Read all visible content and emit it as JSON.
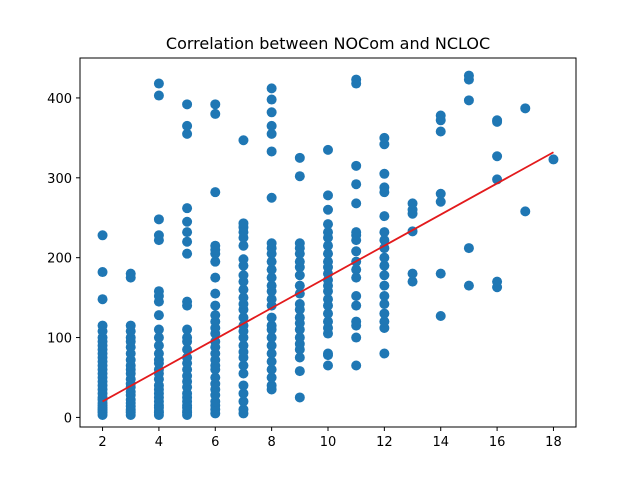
{
  "chart_data": {
    "type": "scatter",
    "title": "Correlation between NOCom and NCLOC",
    "xlabel": "",
    "ylabel": "",
    "xlim": [
      1.2,
      18.8
    ],
    "ylim": [
      -12,
      450
    ],
    "xticks": [
      2,
      4,
      6,
      8,
      10,
      12,
      14,
      16,
      18
    ],
    "yticks": [
      0,
      100,
      200,
      300,
      400
    ],
    "grid": false,
    "point_color": "#1f77b4",
    "line_color": "#e31a1c",
    "series": [
      {
        "kind": "scatter",
        "points": [
          [
            2,
            3
          ],
          [
            2,
            6
          ],
          [
            2,
            8
          ],
          [
            2,
            10
          ],
          [
            2,
            12
          ],
          [
            2,
            15
          ],
          [
            2,
            18
          ],
          [
            2,
            22
          ],
          [
            2,
            25
          ],
          [
            2,
            30
          ],
          [
            2,
            35
          ],
          [
            2,
            40
          ],
          [
            2,
            45
          ],
          [
            2,
            50
          ],
          [
            2,
            55
          ],
          [
            2,
            60
          ],
          [
            2,
            65
          ],
          [
            2,
            70
          ],
          [
            2,
            75
          ],
          [
            2,
            80
          ],
          [
            2,
            85
          ],
          [
            2,
            90
          ],
          [
            2,
            95
          ],
          [
            2,
            100
          ],
          [
            2,
            108
          ],
          [
            2,
            115
          ],
          [
            2,
            148
          ],
          [
            2,
            182
          ],
          [
            2,
            228
          ],
          [
            3,
            3
          ],
          [
            3,
            6
          ],
          [
            3,
            8
          ],
          [
            3,
            10
          ],
          [
            3,
            14
          ],
          [
            3,
            18
          ],
          [
            3,
            22
          ],
          [
            3,
            28
          ],
          [
            3,
            32
          ],
          [
            3,
            38
          ],
          [
            3,
            42
          ],
          [
            3,
            48
          ],
          [
            3,
            55
          ],
          [
            3,
            60
          ],
          [
            3,
            65
          ],
          [
            3,
            72
          ],
          [
            3,
            80
          ],
          [
            3,
            88
          ],
          [
            3,
            95
          ],
          [
            3,
            100
          ],
          [
            3,
            108
          ],
          [
            3,
            115
          ],
          [
            3,
            175
          ],
          [
            3,
            180
          ],
          [
            4,
            3
          ],
          [
            4,
            6
          ],
          [
            4,
            8
          ],
          [
            4,
            12
          ],
          [
            4,
            15
          ],
          [
            4,
            20
          ],
          [
            4,
            25
          ],
          [
            4,
            30
          ],
          [
            4,
            35
          ],
          [
            4,
            40
          ],
          [
            4,
            48
          ],
          [
            4,
            55
          ],
          [
            4,
            60
          ],
          [
            4,
            68
          ],
          [
            4,
            72
          ],
          [
            4,
            80
          ],
          [
            4,
            90
          ],
          [
            4,
            100
          ],
          [
            4,
            110
          ],
          [
            4,
            128
          ],
          [
            4,
            145
          ],
          [
            4,
            152
          ],
          [
            4,
            158
          ],
          [
            4,
            222
          ],
          [
            4,
            228
          ],
          [
            4,
            248
          ],
          [
            4,
            403
          ],
          [
            4,
            418
          ],
          [
            5,
            3
          ],
          [
            5,
            6
          ],
          [
            5,
            8
          ],
          [
            5,
            12
          ],
          [
            5,
            15
          ],
          [
            5,
            20
          ],
          [
            5,
            25
          ],
          [
            5,
            30
          ],
          [
            5,
            38
          ],
          [
            5,
            45
          ],
          [
            5,
            52
          ],
          [
            5,
            60
          ],
          [
            5,
            68
          ],
          [
            5,
            75
          ],
          [
            5,
            85
          ],
          [
            5,
            95
          ],
          [
            5,
            100
          ],
          [
            5,
            110
          ],
          [
            5,
            140
          ],
          [
            5,
            145
          ],
          [
            5,
            205
          ],
          [
            5,
            220
          ],
          [
            5,
            232
          ],
          [
            5,
            245
          ],
          [
            5,
            262
          ],
          [
            5,
            355
          ],
          [
            5,
            365
          ],
          [
            5,
            392
          ],
          [
            6,
            5
          ],
          [
            6,
            10
          ],
          [
            6,
            15
          ],
          [
            6,
            20
          ],
          [
            6,
            28
          ],
          [
            6,
            35
          ],
          [
            6,
            42
          ],
          [
            6,
            50
          ],
          [
            6,
            60
          ],
          [
            6,
            65
          ],
          [
            6,
            72
          ],
          [
            6,
            80
          ],
          [
            6,
            88
          ],
          [
            6,
            95
          ],
          [
            6,
            105
          ],
          [
            6,
            112
          ],
          [
            6,
            120
          ],
          [
            6,
            128
          ],
          [
            6,
            140
          ],
          [
            6,
            155
          ],
          [
            6,
            175
          ],
          [
            6,
            195
          ],
          [
            6,
            205
          ],
          [
            6,
            210
          ],
          [
            6,
            215
          ],
          [
            6,
            282
          ],
          [
            6,
            380
          ],
          [
            6,
            392
          ],
          [
            7,
            5
          ],
          [
            7,
            10
          ],
          [
            7,
            20
          ],
          [
            7,
            30
          ],
          [
            7,
            40
          ],
          [
            7,
            55
          ],
          [
            7,
            65
          ],
          [
            7,
            75
          ],
          [
            7,
            82
          ],
          [
            7,
            90
          ],
          [
            7,
            100
          ],
          [
            7,
            108
          ],
          [
            7,
            115
          ],
          [
            7,
            125
          ],
          [
            7,
            135
          ],
          [
            7,
            142
          ],
          [
            7,
            150
          ],
          [
            7,
            160
          ],
          [
            7,
            170
          ],
          [
            7,
            178
          ],
          [
            7,
            190
          ],
          [
            7,
            198
          ],
          [
            7,
            215
          ],
          [
            7,
            225
          ],
          [
            7,
            232
          ],
          [
            7,
            238
          ],
          [
            7,
            243
          ],
          [
            7,
            347
          ],
          [
            8,
            35
          ],
          [
            8,
            40
          ],
          [
            8,
            50
          ],
          [
            8,
            60
          ],
          [
            8,
            70
          ],
          [
            8,
            80
          ],
          [
            8,
            90
          ],
          [
            8,
            100
          ],
          [
            8,
            110
          ],
          [
            8,
            115
          ],
          [
            8,
            125
          ],
          [
            8,
            140
          ],
          [
            8,
            148
          ],
          [
            8,
            158
          ],
          [
            8,
            165
          ],
          [
            8,
            175
          ],
          [
            8,
            185
          ],
          [
            8,
            195
          ],
          [
            8,
            205
          ],
          [
            8,
            212
          ],
          [
            8,
            218
          ],
          [
            8,
            275
          ],
          [
            8,
            333
          ],
          [
            8,
            355
          ],
          [
            8,
            365
          ],
          [
            8,
            382
          ],
          [
            8,
            398
          ],
          [
            8,
            412
          ],
          [
            9,
            25
          ],
          [
            9,
            58
          ],
          [
            9,
            75
          ],
          [
            9,
            85
          ],
          [
            9,
            92
          ],
          [
            9,
            100
          ],
          [
            9,
            110
          ],
          [
            9,
            118
          ],
          [
            9,
            125
          ],
          [
            9,
            135
          ],
          [
            9,
            142
          ],
          [
            9,
            155
          ],
          [
            9,
            165
          ],
          [
            9,
            178
          ],
          [
            9,
            188
          ],
          [
            9,
            195
          ],
          [
            9,
            205
          ],
          [
            9,
            212
          ],
          [
            9,
            218
          ],
          [
            9,
            302
          ],
          [
            9,
            325
          ],
          [
            10,
            65
          ],
          [
            10,
            78
          ],
          [
            10,
            80
          ],
          [
            10,
            105
          ],
          [
            10,
            112
          ],
          [
            10,
            120
          ],
          [
            10,
            130
          ],
          [
            10,
            140
          ],
          [
            10,
            148
          ],
          [
            10,
            158
          ],
          [
            10,
            165
          ],
          [
            10,
            172
          ],
          [
            10,
            180
          ],
          [
            10,
            188
          ],
          [
            10,
            195
          ],
          [
            10,
            205
          ],
          [
            10,
            215
          ],
          [
            10,
            225
          ],
          [
            10,
            232
          ],
          [
            10,
            242
          ],
          [
            10,
            260
          ],
          [
            10,
            278
          ],
          [
            10,
            335
          ],
          [
            11,
            65
          ],
          [
            11,
            100
          ],
          [
            11,
            115
          ],
          [
            11,
            120
          ],
          [
            11,
            140
          ],
          [
            11,
            152
          ],
          [
            11,
            175
          ],
          [
            11,
            185
          ],
          [
            11,
            195
          ],
          [
            11,
            208
          ],
          [
            11,
            222
          ],
          [
            11,
            228
          ],
          [
            11,
            232
          ],
          [
            11,
            268
          ],
          [
            11,
            292
          ],
          [
            11,
            315
          ],
          [
            11,
            418
          ],
          [
            11,
            423
          ],
          [
            12,
            80
          ],
          [
            12,
            112
          ],
          [
            12,
            120
          ],
          [
            12,
            130
          ],
          [
            12,
            142
          ],
          [
            12,
            152
          ],
          [
            12,
            165
          ],
          [
            12,
            178
          ],
          [
            12,
            190
          ],
          [
            12,
            200
          ],
          [
            12,
            212
          ],
          [
            12,
            222
          ],
          [
            12,
            232
          ],
          [
            12,
            252
          ],
          [
            12,
            282
          ],
          [
            12,
            288
          ],
          [
            12,
            305
          ],
          [
            12,
            342
          ],
          [
            12,
            350
          ],
          [
            13,
            170
          ],
          [
            13,
            180
          ],
          [
            13,
            233
          ],
          [
            13,
            255
          ],
          [
            13,
            260
          ],
          [
            13,
            268
          ],
          [
            14,
            127
          ],
          [
            14,
            180
          ],
          [
            14,
            270
          ],
          [
            14,
            280
          ],
          [
            14,
            358
          ],
          [
            14,
            372
          ],
          [
            14,
            378
          ],
          [
            15,
            165
          ],
          [
            15,
            212
          ],
          [
            15,
            397
          ],
          [
            15,
            423
          ],
          [
            15,
            428
          ],
          [
            16,
            163
          ],
          [
            16,
            170
          ],
          [
            16,
            298
          ],
          [
            16,
            327
          ],
          [
            16,
            370
          ],
          [
            16,
            372
          ],
          [
            17,
            258
          ],
          [
            17,
            387
          ],
          [
            18,
            323
          ]
        ]
      },
      {
        "kind": "line",
        "points": [
          [
            2,
            20
          ],
          [
            18,
            332
          ]
        ]
      }
    ]
  }
}
